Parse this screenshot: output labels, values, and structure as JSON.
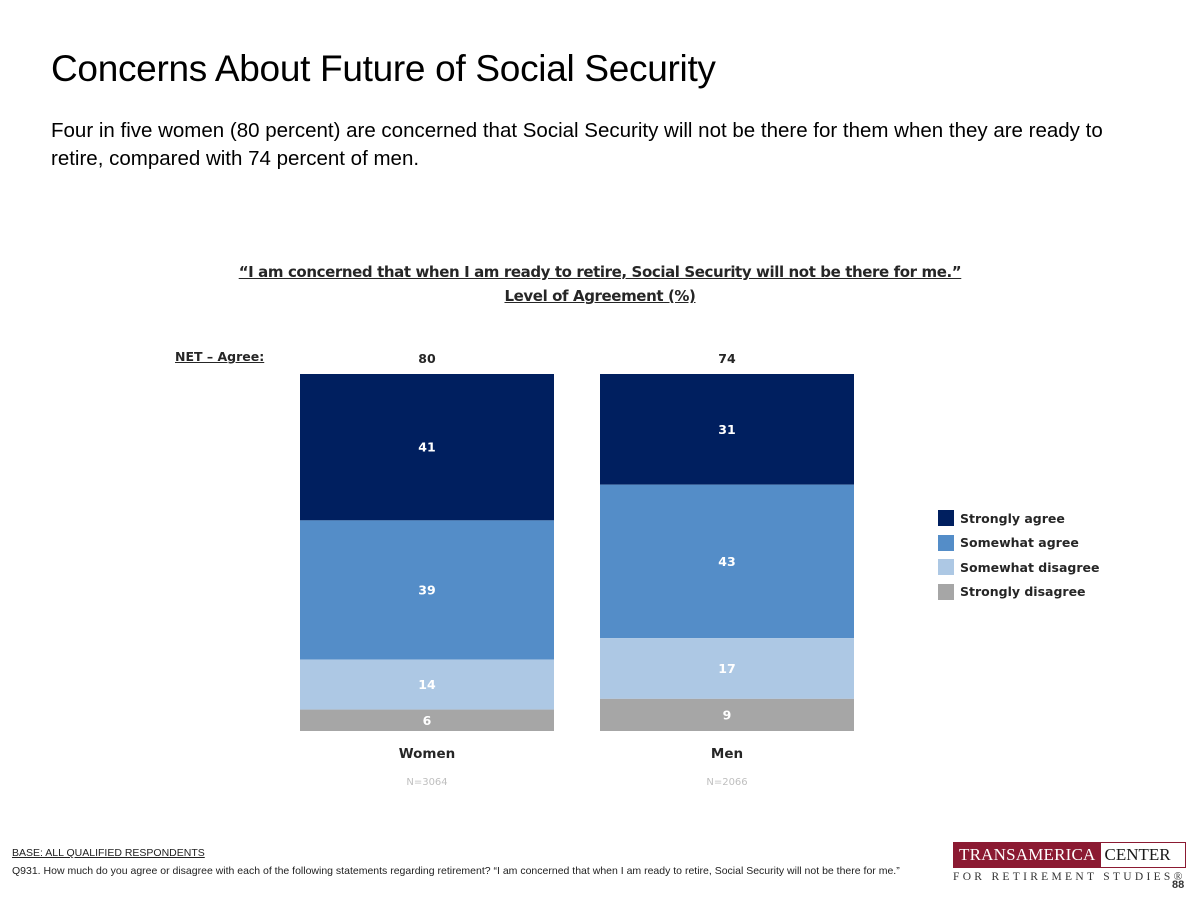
{
  "slide": {
    "title": "Concerns About Future of Social Security",
    "subtitle": "Four in five women (80 percent) are concerned that Social Security will not be there for them when they are ready to retire, compared with 74 percent of men.",
    "page_number": "88"
  },
  "chart_data": {
    "type": "bar",
    "stacked": true,
    "title": "“I am concerned that when I am ready to retire, Social Security will not be there for me.”",
    "subtitle": "Level of Agreement (%)",
    "categories": [
      "Women",
      "Men"
    ],
    "sample_sizes": [
      "N=3064",
      "N=2066"
    ],
    "net_label": "NET – Agree:",
    "net_values": [
      80,
      74
    ],
    "series": [
      {
        "name": "Strongly agree",
        "values": [
          41,
          31
        ],
        "color": "#001f5f"
      },
      {
        "name": "Somewhat agree",
        "values": [
          39,
          43
        ],
        "color": "#548dc8"
      },
      {
        "name": "Somewhat disagree",
        "values": [
          14,
          17
        ],
        "color": "#adc8e4"
      },
      {
        "name": "Strongly disagree",
        "values": [
          6,
          9
        ],
        "color": "#a6a6a6"
      }
    ],
    "ylim": [
      0,
      100
    ],
    "legend_position": "right",
    "grid": false
  },
  "footer": {
    "base": "BASE: ALL QUALIFIED RESPONDENTS",
    "question": "Q931. How much do you agree or disagree with each of the following statements regarding retirement? “I am concerned that when I am ready to retire, Social Security will not be there for me.”"
  },
  "logo": {
    "part1": "TRANSAMERICA",
    "part2": "CENTER",
    "tagline": "FOR RETIREMENT STUDIES®"
  }
}
